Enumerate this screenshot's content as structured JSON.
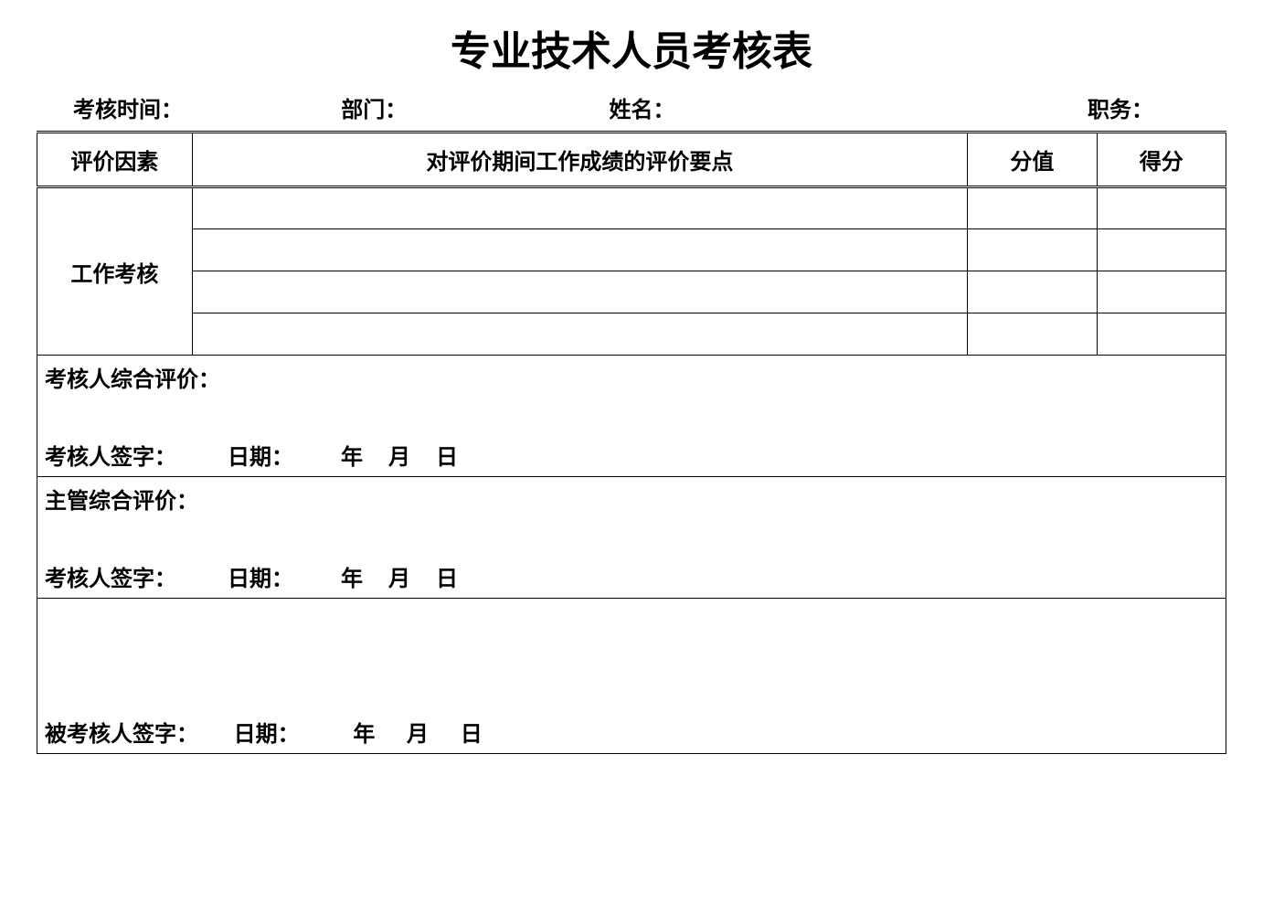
{
  "title": "专业技术人员考核表",
  "info": {
    "time_label": "考核时间：",
    "dept_label": "部门：",
    "name_label": "姓名：",
    "position_label": "职务："
  },
  "headers": {
    "factor": "评价因素",
    "points": "对评价期间工作成绩的评价要点",
    "value": "分值",
    "score": "得分"
  },
  "section": {
    "work_assessment": "工作考核"
  },
  "rows": [
    {
      "points": "",
      "value": "",
      "score": ""
    },
    {
      "points": "",
      "value": "",
      "score": ""
    },
    {
      "points": "",
      "value": "",
      "score": ""
    },
    {
      "points": "",
      "value": "",
      "score": ""
    }
  ],
  "comments": {
    "assessor_comment_label": "考核人综合评价：",
    "supervisor_comment_label": "主管综合评价：",
    "assessor_sig_label": "考核人签字：",
    "assessee_sig_label": "被考核人签字：",
    "date_label": "日期：",
    "year": "年",
    "month": "月",
    "day": "日"
  },
  "styling": {
    "background_color": "#ffffff",
    "text_color": "#000000",
    "border_color": "#000000",
    "title_fontsize": 44,
    "header_fontsize": 24,
    "body_fontsize": 24,
    "font_weight": "bold",
    "columns": {
      "factor_width_pct": 12,
      "points_width_pct": 60,
      "value_width_pct": 10,
      "score_width_pct": 10
    }
  }
}
